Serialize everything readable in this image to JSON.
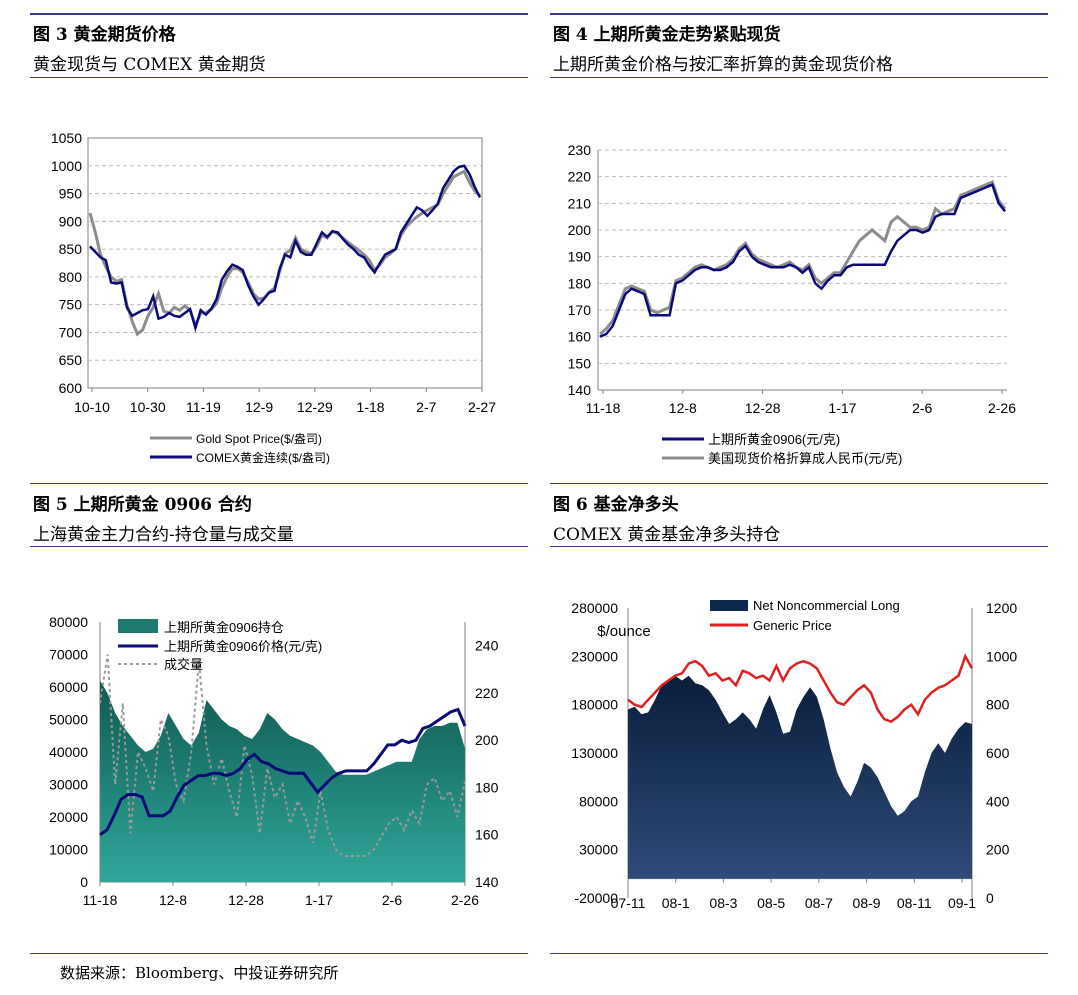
{
  "source_note": "数据来源：Bloomberg、中投证券研究所",
  "panels": [
    {
      "title": "图 3  黄金期货价格",
      "subtitle": "黄金现货与 COMEX 黄金期货"
    },
    {
      "title": "图 4  上期所黄金走势紧贴现货",
      "subtitle": "上期所黄金价格与按汇率折算的黄金现货价格"
    },
    {
      "title": "图 5  上期所黄金 0906 合约",
      "subtitle": "上海黄金主力合约-持仓量与成交量"
    },
    {
      "title": "图 6  基金净多头",
      "subtitle": "COMEX 黄金基金净多头持仓"
    }
  ],
  "chart_data": [
    {
      "type": "line",
      "title": "",
      "x_ticks": [
        "10-10",
        "10-30",
        "11-19",
        "12-9",
        "12-29",
        "1-18",
        "2-7",
        "2-27"
      ],
      "y_ticks": [
        600,
        650,
        700,
        750,
        800,
        850,
        900,
        950,
        1000,
        1050
      ],
      "ylim": [
        600,
        1050
      ],
      "grid": true,
      "legend_position": "bottom",
      "colors": {
        "Gold Spot Price($/盎司)": "#8c8c8c",
        "COMEX黄金连续($/盎司)": "#0a0a78"
      },
      "series": [
        {
          "name": "Gold Spot Price($/盎司)",
          "values": [
            915,
            880,
            840,
            818,
            800,
            792,
            795,
            750,
            720,
            697,
            705,
            730,
            745,
            770,
            738,
            735,
            745,
            740,
            748,
            740,
            712,
            735,
            735,
            742,
            752,
            780,
            800,
            815,
            815,
            808,
            790,
            770,
            760,
            762,
            772,
            780,
            810,
            842,
            848,
            870,
            850,
            845,
            842,
            855,
            875,
            870,
            882,
            878,
            870,
            862,
            855,
            848,
            840,
            830,
            812,
            822,
            835,
            842,
            850,
            875,
            890,
            900,
            908,
            915,
            920,
            925,
            930,
            950,
            965,
            980,
            985,
            990,
            970,
            955,
            945
          ]
        },
        {
          "name": "COMEX黄金连续($/盎司)",
          "values": [
            855,
            845,
            835,
            830,
            790,
            788,
            790,
            745,
            730,
            735,
            740,
            742,
            765,
            725,
            728,
            735,
            730,
            728,
            735,
            742,
            708,
            740,
            732,
            742,
            760,
            795,
            810,
            822,
            818,
            812,
            785,
            765,
            750,
            760,
            772,
            775,
            815,
            840,
            835,
            865,
            845,
            840,
            840,
            860,
            880,
            872,
            882,
            880,
            868,
            858,
            850,
            840,
            835,
            820,
            808,
            825,
            840,
            845,
            850,
            880,
            895,
            910,
            925,
            920,
            910,
            920,
            932,
            960,
            975,
            990,
            998,
            1000,
            985,
            962,
            943
          ]
        }
      ]
    },
    {
      "type": "line",
      "title": "",
      "x_ticks": [
        "11-18",
        "12-8",
        "12-28",
        "1-17",
        "2-6",
        "2-26"
      ],
      "y_ticks": [
        140,
        150,
        160,
        170,
        180,
        190,
        200,
        210,
        220,
        230
      ],
      "ylim": [
        140,
        230
      ],
      "grid": true,
      "legend_position": "bottom",
      "colors": {
        "上期所黄金0906(元/克)": "#0a0a78",
        "美国现货价格折算成人民币(元/克)": "#8c8c8c"
      },
      "series": [
        {
          "name": "上期所黄金0906(元/克)",
          "values": [
            160,
            161,
            164,
            170,
            176,
            178,
            177,
            176,
            168,
            168,
            168,
            168,
            180,
            181,
            183,
            185,
            186,
            186,
            185,
            185,
            186,
            188,
            192,
            194,
            190,
            188,
            187,
            186,
            186,
            186,
            187,
            186,
            184,
            186,
            180,
            178,
            181,
            183,
            183,
            186,
            187,
            187,
            187,
            187,
            187,
            187,
            192,
            196,
            198,
            200,
            200,
            199,
            200,
            205,
            206,
            206,
            206,
            212,
            213,
            214,
            215,
            216,
            217,
            210,
            207
          ]
        },
        {
          "name": "美国现货价格折算成人民币(元/克)",
          "values": [
            161,
            163,
            166,
            172,
            178,
            179,
            178,
            177,
            170,
            169,
            170,
            171,
            181,
            182,
            184,
            186,
            187,
            186,
            185,
            186,
            187,
            189,
            193,
            195,
            191,
            189,
            188,
            187,
            186,
            187,
            188,
            186,
            185,
            187,
            182,
            180,
            182,
            184,
            184,
            188,
            192,
            196,
            198,
            200,
            198,
            196,
            203,
            205,
            203,
            201,
            201,
            200,
            201,
            208,
            206,
            207,
            208,
            213,
            214,
            215,
            216,
            217,
            218,
            211,
            208
          ]
        }
      ]
    },
    {
      "type": "area",
      "title": "",
      "x_ticks": [
        "11-18",
        "12-8",
        "12-28",
        "1-17",
        "2-6",
        "2-26"
      ],
      "y_ticks_left": [
        0,
        10000,
        20000,
        30000,
        40000,
        50000,
        60000,
        70000,
        80000
      ],
      "y_ticks_right": [
        140,
        160,
        180,
        200,
        220,
        240
      ],
      "ylim_left": [
        0,
        80000
      ],
      "ylim_right": [
        140,
        250
      ],
      "grid": false,
      "legend_position": "top-left",
      "colors": {
        "上期所黄金0906持仓": "#1e7a6e",
        "上期所黄金0906价格(元/克)": "#0a0a78",
        "成交量": "#9a9a9a"
      },
      "series": [
        {
          "name": "上期所黄金0906持仓",
          "axis": "left",
          "values": [
            62000,
            58000,
            52000,
            48000,
            45000,
            42000,
            40000,
            41000,
            45000,
            52000,
            48000,
            44000,
            42000,
            46000,
            56000,
            53000,
            50000,
            48000,
            47000,
            45000,
            44000,
            47000,
            52000,
            50000,
            47000,
            45000,
            44000,
            43000,
            42000,
            40000,
            37000,
            34000,
            33000,
            33000,
            33000,
            33000,
            34000,
            35000,
            36000,
            37000,
            37000,
            37000,
            44000,
            47000,
            48000,
            48000,
            49000,
            49000,
            41000
          ]
        },
        {
          "name": "上期所黄金0906价格(元/克)",
          "axis": "right",
          "values": [
            160,
            162,
            168,
            175,
            177,
            177,
            176,
            168,
            168,
            168,
            170,
            176,
            181,
            183,
            185,
            185,
            186,
            186,
            185,
            186,
            188,
            192,
            194,
            191,
            190,
            188,
            187,
            186,
            186,
            186,
            182,
            178,
            181,
            184,
            186,
            187,
            187,
            187,
            187,
            190,
            194,
            198,
            198,
            200,
            199,
            200,
            205,
            206,
            208,
            210,
            212,
            213,
            206
          ]
        },
        {
          "name": "成交量",
          "axis": "left",
          "values": [
            55000,
            70000,
            30000,
            55000,
            15000,
            40000,
            35000,
            28000,
            50000,
            45000,
            30000,
            25000,
            40000,
            68000,
            42000,
            30000,
            38000,
            28000,
            20000,
            42000,
            33000,
            15000,
            35000,
            26000,
            30000,
            18000,
            25000,
            20000,
            12000,
            28000,
            16000,
            10000,
            8000,
            8000,
            8000,
            8000,
            10000,
            14000,
            18000,
            20000,
            16000,
            22000,
            18000,
            30000,
            32000,
            25000,
            28000,
            20000,
            31000
          ]
        }
      ]
    },
    {
      "type": "area",
      "title": "",
      "y_unit_label": "$/ounce",
      "x_ticks": [
        "07-11",
        "08-1",
        "08-3",
        "08-5",
        "08-7",
        "08-9",
        "08-11",
        "09-1"
      ],
      "y_ticks_left": [
        -20000,
        30000,
        80000,
        130000,
        180000,
        230000,
        280000
      ],
      "y_ticks_right": [
        0,
        200,
        400,
        600,
        800,
        1000,
        1200
      ],
      "ylim_left": [
        -20000,
        280000
      ],
      "ylim_right": [
        0,
        1200
      ],
      "grid": false,
      "legend_position": "top",
      "colors": {
        "Net Noncommercial Long": "#0d2a4e",
        "Generic Price": "#e02020"
      },
      "series": [
        {
          "name": "Net Noncommercial Long",
          "axis": "left",
          "values": [
            175000,
            178000,
            170000,
            172000,
            185000,
            200000,
            205000,
            210000,
            205000,
            210000,
            202000,
            200000,
            195000,
            185000,
            172000,
            160000,
            165000,
            172000,
            165000,
            155000,
            175000,
            190000,
            172000,
            150000,
            152000,
            175000,
            188000,
            198000,
            188000,
            165000,
            135000,
            110000,
            95000,
            85000,
            100000,
            120000,
            115000,
            105000,
            90000,
            75000,
            65000,
            70000,
            80000,
            85000,
            110000,
            130000,
            140000,
            130000,
            145000,
            155000,
            162000,
            160000
          ]
        },
        {
          "name": "Generic Price",
          "axis": "right",
          "values": [
            820,
            800,
            790,
            820,
            850,
            880,
            900,
            920,
            930,
            970,
            980,
            960,
            920,
            930,
            900,
            910,
            880,
            940,
            930,
            910,
            920,
            900,
            960,
            900,
            950,
            970,
            980,
            970,
            950,
            900,
            850,
            810,
            800,
            830,
            860,
            880,
            850,
            780,
            740,
            730,
            750,
            780,
            800,
            760,
            820,
            850,
            870,
            880,
            900,
            920,
            1000,
            950
          ]
        }
      ]
    }
  ]
}
